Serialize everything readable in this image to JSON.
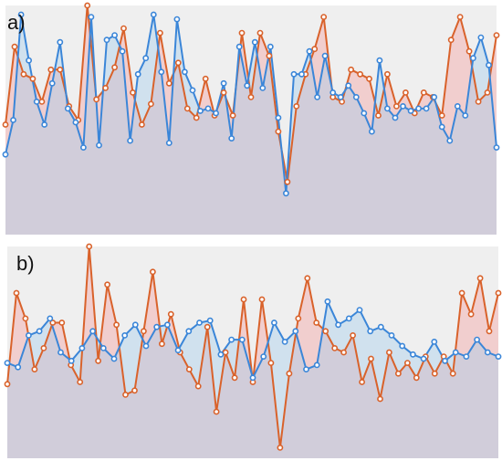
{
  "chart_data": [
    {
      "type": "line",
      "panel_label": "a)",
      "ylim": [
        0,
        100
      ],
      "grid": false,
      "background_color": "#efefef",
      "series": [
        {
          "color": "#d9622b",
          "values": [
            48,
            82,
            70,
            68,
            58,
            72,
            72,
            56,
            50,
            100,
            59,
            64,
            73,
            90,
            62,
            48,
            57,
            88,
            66,
            75,
            55,
            51,
            68,
            52,
            62,
            52,
            88,
            60,
            88,
            78,
            45,
            23,
            56,
            70,
            81,
            95,
            60,
            58,
            72,
            70,
            68,
            52,
            70,
            56,
            62,
            53,
            62,
            60,
            52,
            85,
            95,
            80,
            58,
            62,
            87
          ]
        },
        {
          "color": "#3b86d8",
          "values": [
            35,
            50,
            96,
            76,
            58,
            48,
            66,
            84,
            55,
            49,
            38,
            95,
            39,
            85,
            87,
            80,
            41,
            70,
            77,
            96,
            71,
            40,
            94,
            71,
            63,
            54,
            55,
            53,
            66,
            42,
            82,
            65,
            84,
            64,
            82,
            51,
            18,
            70,
            70,
            80,
            60,
            78,
            62,
            60,
            65,
            60,
            53,
            45,
            76,
            55,
            51,
            56,
            54,
            55,
            55,
            60,
            47,
            41,
            56,
            52,
            77,
            86,
            74,
            38
          ]
        }
      ]
    },
    {
      "type": "line",
      "panel_label": "b)",
      "ylim": [
        0,
        100
      ],
      "grid": false,
      "background_color": "#efefef",
      "series": [
        {
          "color": "#d9622b",
          "values": [
            35,
            78,
            66,
            42,
            52,
            64,
            64,
            44,
            36,
            100,
            46,
            82,
            63,
            30,
            32,
            60,
            88,
            54,
            68,
            50,
            42,
            34,
            62,
            22,
            50,
            38,
            75,
            36,
            75,
            45,
            5,
            40,
            66,
            85,
            64,
            60,
            52,
            50,
            58,
            36,
            47,
            28,
            50,
            40,
            45,
            38,
            48,
            40,
            48,
            40,
            78,
            68,
            85,
            60,
            78
          ]
        },
        {
          "color": "#3b86d8",
          "values": [
            45,
            43,
            58,
            60,
            66,
            50,
            46,
            52,
            60,
            52,
            47,
            58,
            63,
            53,
            62,
            63,
            51,
            60,
            64,
            65,
            49,
            56,
            56,
            38,
            48,
            64,
            55,
            60,
            42,
            44,
            74,
            63,
            66,
            70,
            60,
            62,
            58,
            53,
            49,
            47,
            55,
            46,
            50,
            48,
            56,
            50,
            48
          ]
        }
      ]
    }
  ]
}
